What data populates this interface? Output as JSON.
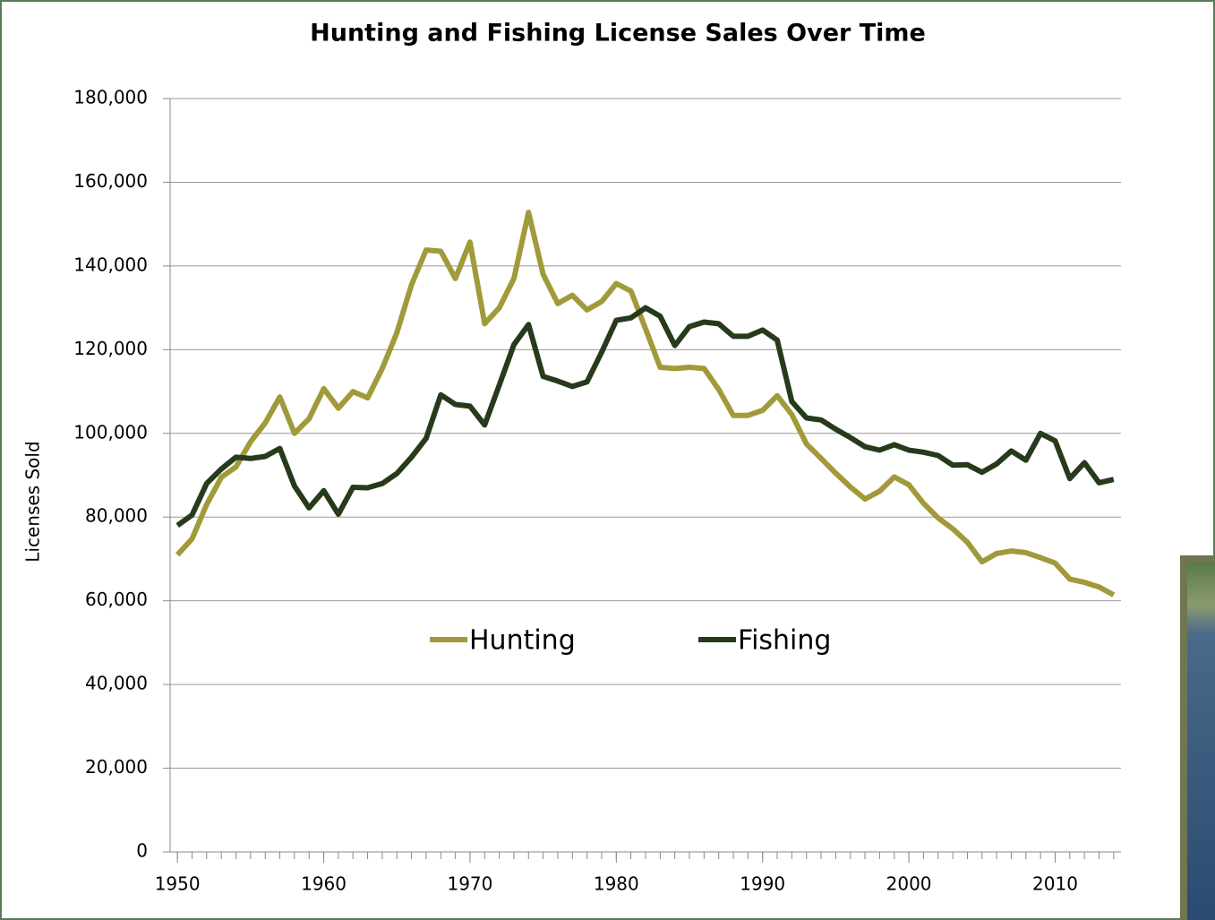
{
  "chart_data": {
    "type": "line",
    "title": "Hunting and Fishing License Sales Over Time",
    "y_label": "Licenses Sold",
    "x": [
      1950,
      1951,
      1952,
      1953,
      1954,
      1955,
      1956,
      1957,
      1958,
      1959,
      1960,
      1961,
      1962,
      1963,
      1964,
      1965,
      1966,
      1967,
      1968,
      1969,
      1970,
      1971,
      1972,
      1973,
      1974,
      1975,
      1976,
      1977,
      1978,
      1979,
      1980,
      1981,
      1982,
      1983,
      1984,
      1985,
      1986,
      1987,
      1988,
      1989,
      1990,
      1991,
      1992,
      1993,
      1994,
      1995,
      1996,
      1997,
      1998,
      1999,
      2000,
      2001,
      2002,
      2003,
      2004,
      2005,
      2006,
      2007,
      2008,
      2009,
      2010,
      2011,
      2012,
      2013,
      2014
    ],
    "series": [
      {
        "name": "Hunting",
        "color": "#a09a3a",
        "values": [
          71000,
          74800,
          83000,
          89500,
          92000,
          98000,
          102500,
          108700,
          100000,
          103500,
          110700,
          106000,
          110000,
          108500,
          115500,
          124000,
          135500,
          143800,
          143500,
          137000,
          145700,
          126200,
          130000,
          137000,
          152800,
          138000,
          131000,
          133000,
          129500,
          131500,
          135800,
          134000,
          125000,
          115800,
          115500,
          115800,
          115500,
          110500,
          104300,
          104300,
          105500,
          109000,
          104500,
          97500,
          94000,
          90500,
          87200,
          84300,
          86200,
          89600,
          87700,
          83300,
          79800,
          77200,
          74000,
          69300,
          71300,
          71900,
          71500,
          70300,
          69000,
          65200,
          64400,
          63300,
          61400
        ]
      },
      {
        "name": "Fishing",
        "color": "#263a1c",
        "values": [
          78000,
          80500,
          88000,
          91500,
          94300,
          94000,
          94500,
          96400,
          87400,
          82200,
          86300,
          80700,
          87100,
          87000,
          88000,
          90400,
          94300,
          98800,
          109200,
          106900,
          106500,
          102000,
          111500,
          121200,
          126000,
          113600,
          112500,
          111200,
          112300,
          119400,
          127000,
          127600,
          130000,
          128000,
          121000,
          125500,
          126600,
          126200,
          123200,
          123200,
          124700,
          122300,
          107600,
          103700,
          103200,
          101000,
          99000,
          96800,
          96000,
          97300,
          96000,
          95500,
          94700,
          92400,
          92500,
          90700,
          92700,
          95800,
          93600,
          100000,
          98200,
          89200,
          93000,
          88200,
          89000
        ]
      }
    ],
    "xlim": [
      1949.5,
      2014.5
    ],
    "xticks": [
      1950,
      1960,
      1970,
      1980,
      1990,
      2000,
      2010
    ],
    "ylim": [
      0,
      180000
    ],
    "yticks": [
      0,
      {
        "value": 20000,
        "label": "20,000"
      },
      {
        "value": 40000,
        "label": "40,000"
      },
      {
        "value": 60000,
        "label": "60,000"
      },
      {
        "value": 80000,
        "label": "80,000"
      },
      {
        "value": 100000,
        "label": "100,000"
      },
      {
        "value": 120000,
        "label": "120,000"
      },
      {
        "value": 140000,
        "label": "140,000"
      },
      {
        "value": 160000,
        "label": "160,000"
      },
      {
        "value": 180000,
        "label": "180,000"
      }
    ],
    "grid": true,
    "legend": "center"
  }
}
